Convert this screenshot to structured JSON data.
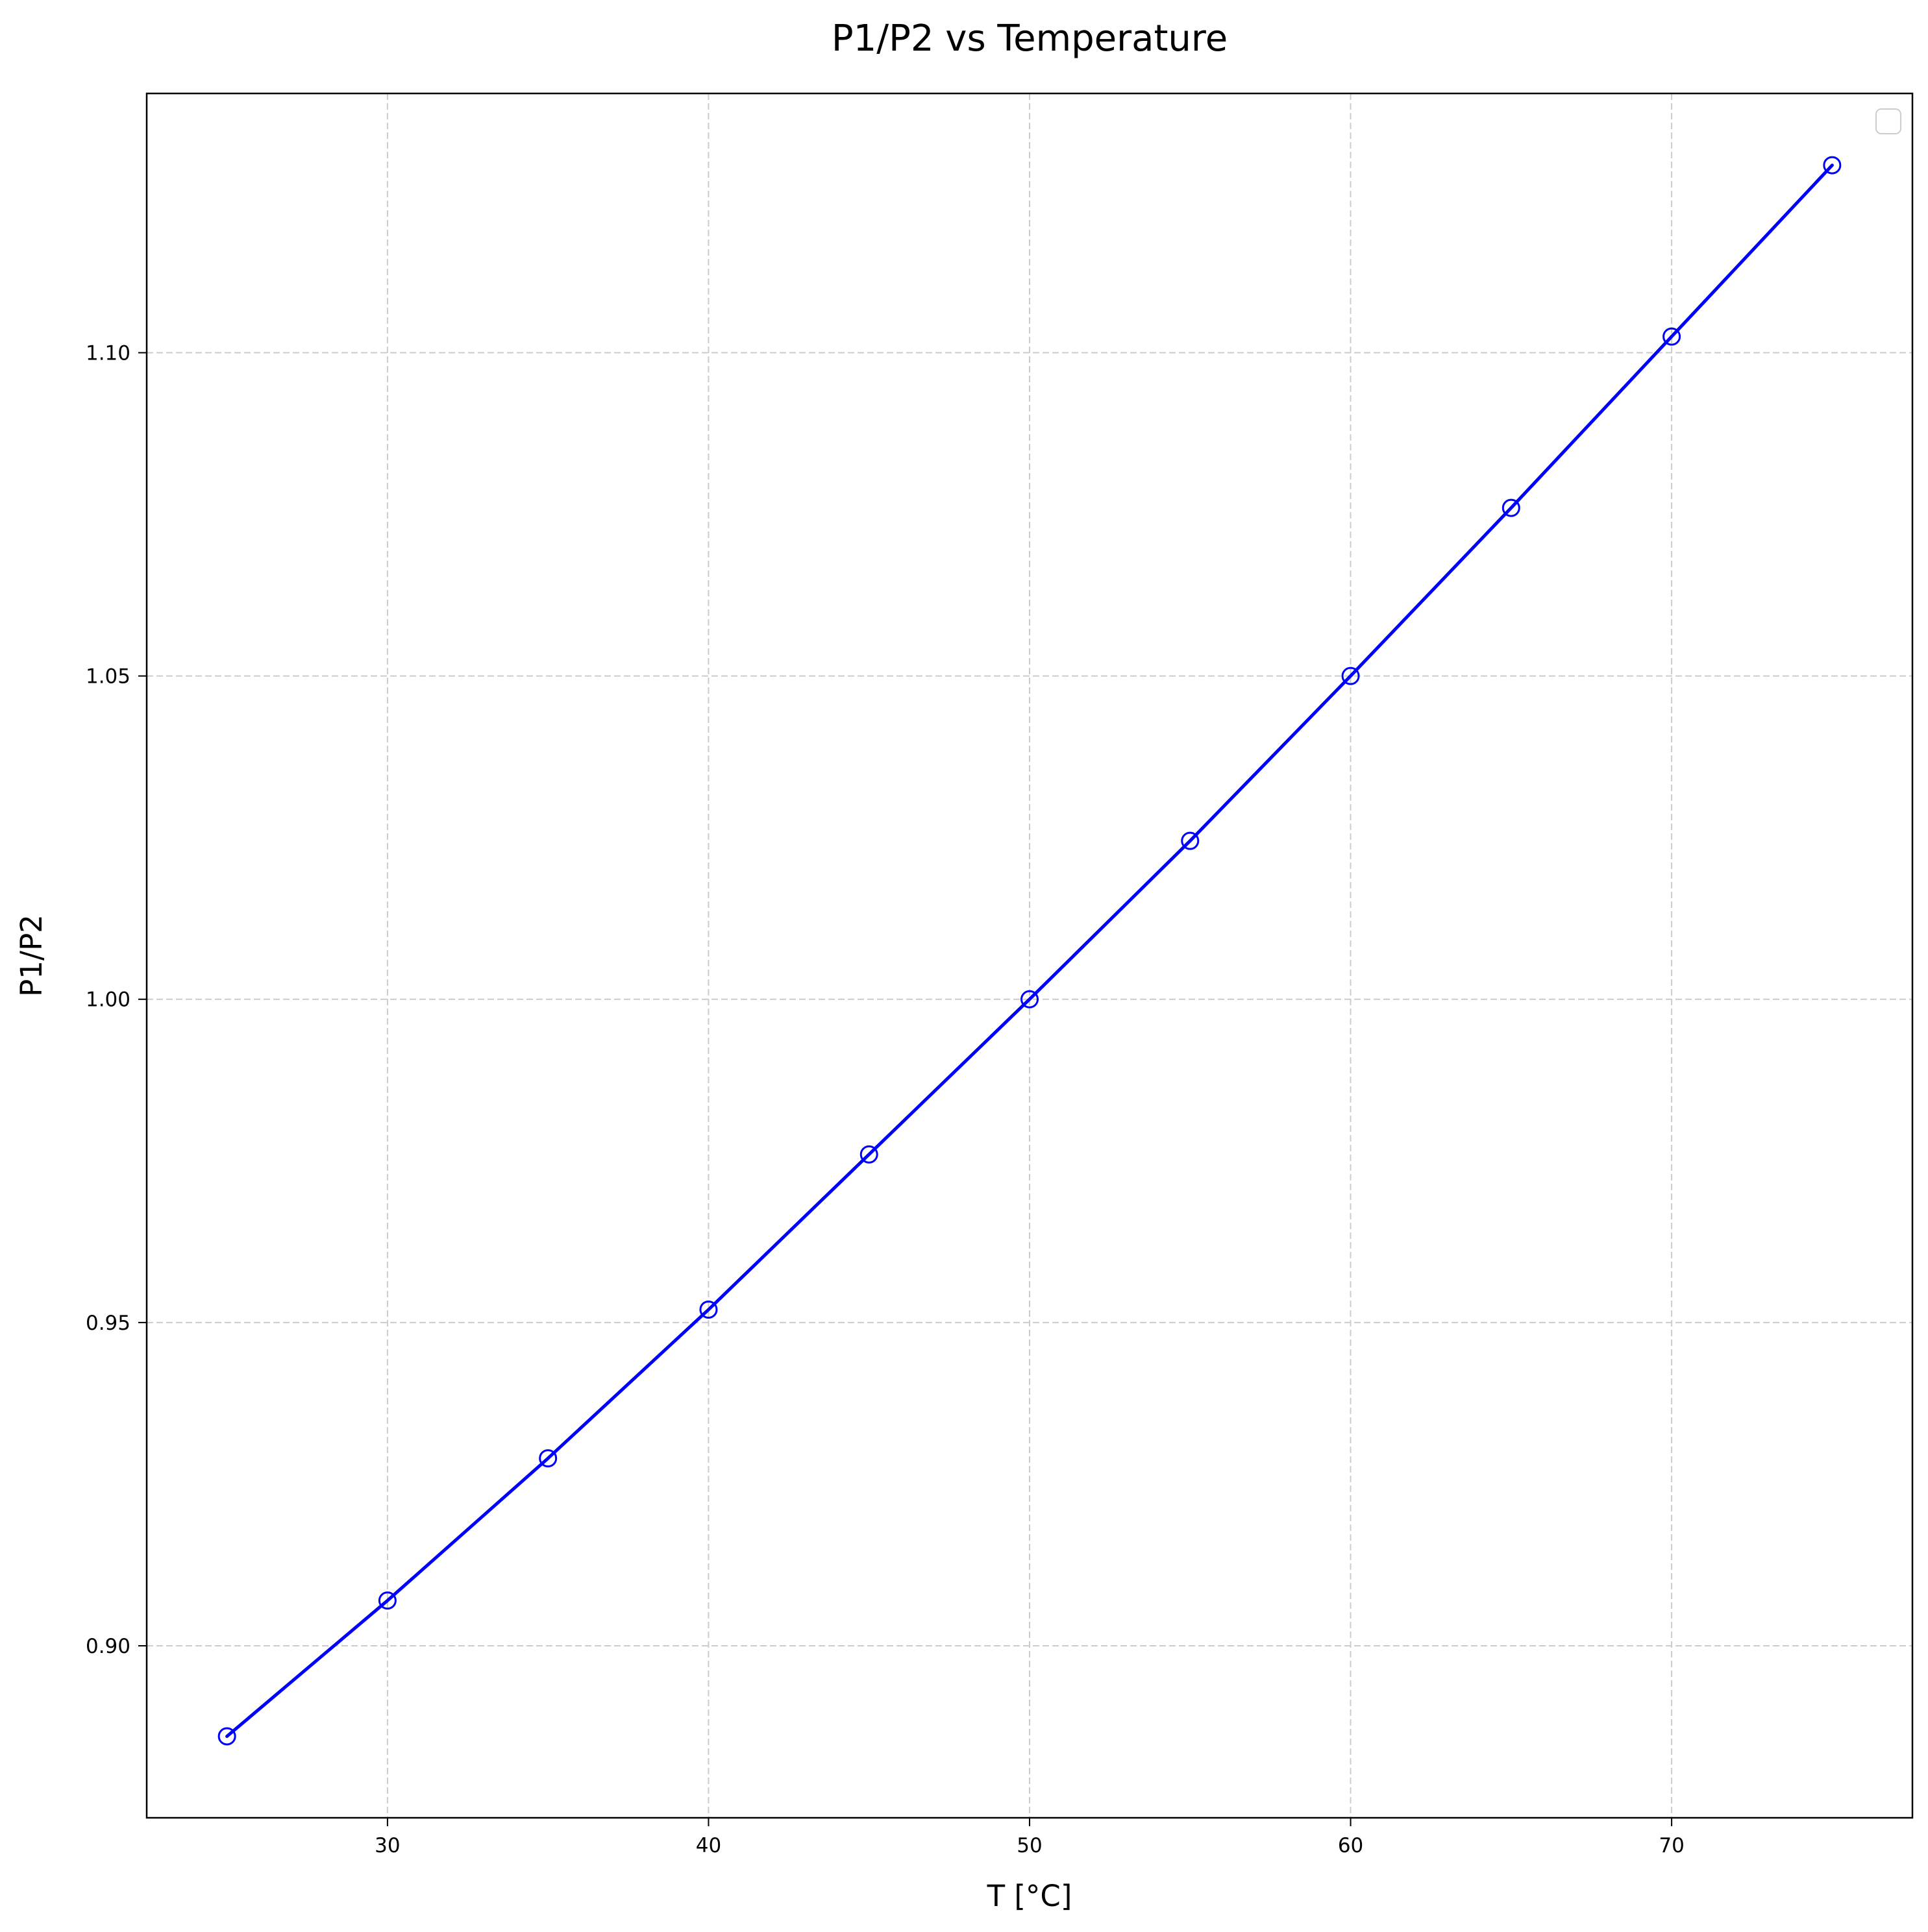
{
  "chart_data": {
    "type": "line",
    "title": "P1/P2 vs Temperature",
    "xlabel": "T [°C]",
    "ylabel": "P1/P2",
    "xlim": [
      22.5,
      77.5
    ],
    "ylim": [
      0.8734,
      1.1401
    ],
    "xticks": [
      30,
      40,
      50,
      60,
      70
    ],
    "xtick_labels": [
      "30",
      "40",
      "50",
      "60",
      "70"
    ],
    "yticks": [
      0.9,
      0.95,
      1.0,
      1.05,
      1.1
    ],
    "ytick_labels": [
      "0.90",
      "0.95",
      "1.00",
      "1.05",
      "1.10"
    ],
    "grid": true,
    "grid_style": "dashed",
    "legend": "top-right",
    "series": [
      {
        "color": "#0000ff",
        "marker": "open-circle",
        "x": [
          25,
          30,
          35,
          40,
          45,
          50,
          55,
          60,
          65,
          70,
          75
        ],
        "y": [
          0.886,
          0.907,
          0.929,
          0.952,
          0.976,
          1.0,
          1.0245,
          1.05,
          1.076,
          1.1025,
          1.129
        ]
      }
    ]
  }
}
